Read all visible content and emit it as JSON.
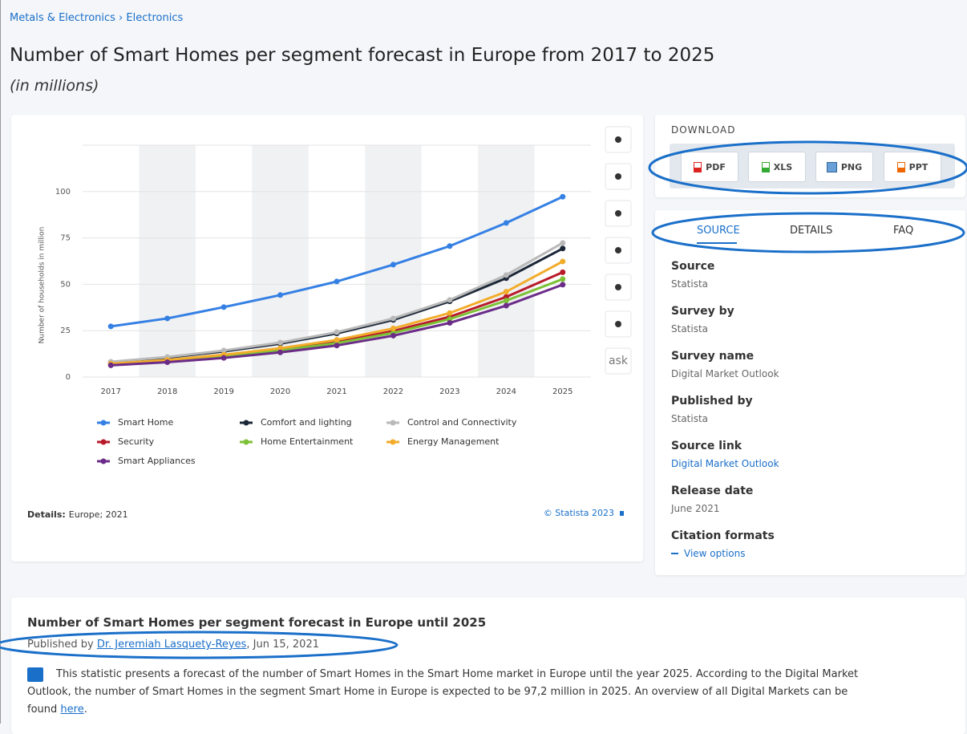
{
  "breadcrumb": [
    "Metals & Electronics",
    "Electronics"
  ],
  "title": "Number of Smart Homes per segment forecast in Europe from 2017 to 2025",
  "subtitle": "(in millions)",
  "chart_data": {
    "type": "line",
    "y_label": "Number of households in million",
    "categories": [
      "2017",
      "2018",
      "2019",
      "2020",
      "2021",
      "2022",
      "2023",
      "2024",
      "2025"
    ],
    "series": [
      {
        "name": "Smart Home",
        "color": "#3580e4",
        "values": [
          27.3,
          31.6,
          37.7,
          44.2,
          51.5,
          60.6,
          70.6,
          83.1,
          97.2
        ]
      },
      {
        "name": "Comfort and lighting",
        "color": "#1c2838",
        "values": [
          8,
          10.5,
          13.8,
          18,
          23.5,
          30.8,
          40.8,
          53.3,
          69.3
        ]
      },
      {
        "name": "Control and Connectivity",
        "color": "#b9b9b9",
        "values": [
          8.2,
          10.8,
          14.3,
          18.6,
          24.2,
          31.6,
          41.6,
          55,
          72.3
        ]
      },
      {
        "name": "Security",
        "color": "#b81a2a",
        "values": [
          7,
          8.8,
          11.5,
          14.8,
          19,
          24.8,
          32.5,
          43.2,
          56.5
        ]
      },
      {
        "name": "Home Entertainment",
        "color": "#7cc136",
        "values": [
          6.8,
          8.5,
          11,
          14.3,
          18.3,
          23.8,
          31.2,
          41.2,
          52.8
        ]
      },
      {
        "name": "Energy Management",
        "color": "#f2ac2b",
        "values": [
          7.2,
          9.2,
          12,
          15.5,
          20,
          26.2,
          34.5,
          46,
          62.3
        ]
      },
      {
        "name": "Smart Appliances",
        "color": "#6b2c88",
        "values": [
          6.3,
          8,
          10.3,
          13.3,
          17,
          22.3,
          29.2,
          38.5,
          49.8
        ]
      }
    ],
    "ylim": [
      0,
      125
    ],
    "yticks": [
      0,
      25,
      50,
      75,
      100
    ],
    "grid": true,
    "legend": "bottom",
    "details_label": "Details:",
    "details": "Europe; 2021",
    "credit": "© Statista 2023"
  },
  "ask_label": "ask",
  "download": {
    "heading": "DOWNLOAD",
    "buttons": [
      "PDF",
      "XLS",
      "PNG",
      "PPT"
    ]
  },
  "tabs": [
    "SOURCE",
    "DETAILS",
    "FAQ"
  ],
  "source_items": [
    {
      "label": "Source",
      "value": "Statista"
    },
    {
      "label": "Survey by",
      "value": "Statista"
    },
    {
      "label": "Survey name",
      "value": "Digital Market Outlook"
    },
    {
      "label": "Published by",
      "value": "Statista"
    },
    {
      "label": "Source link",
      "value": "Digital Market Outlook"
    },
    {
      "label": "Release date",
      "value": "June 2021"
    },
    {
      "label": "Citation formats",
      "value": "View options"
    }
  ],
  "article": {
    "title": "Number of Smart Homes per segment forecast in Europe until 2025",
    "published_prefix": "Published by",
    "author": "Dr. Jeremiah Lasquety-Reyes",
    "date": ", Jun 15, 2021",
    "body": "This statistic presents a forecast of the number of Smart Homes in the Smart Home market in Europe until the year 2025. According to the Digital Market Outlook, the number of Smart Homes in the segment Smart Home in Europe is expected to be 97,2 million in 2025. An overview of all Digital Markets can be found ",
    "link": "here",
    "body_end": "."
  }
}
